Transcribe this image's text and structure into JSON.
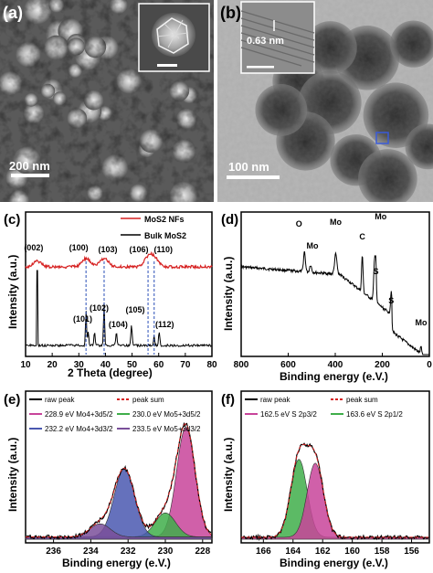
{
  "panels": {
    "a": {
      "label": "(a)",
      "scalebar": "200 nm"
    },
    "b": {
      "label": "(b)",
      "scalebar": "100 nm",
      "inset_label": "0.63 nm"
    },
    "c": {
      "label": "(c)"
    },
    "d": {
      "label": "(d)"
    },
    "e": {
      "label": "(e)"
    },
    "f": {
      "label": "(f)"
    }
  },
  "colors": {
    "red": "#d62020",
    "black": "#000000",
    "purple_fill": "#7a4f9a",
    "blue_fill": "#4a58b0",
    "green_fill": "#3fae4a",
    "pink_fill": "#c8449a",
    "gray_fill": "#707070"
  },
  "chart_data": [
    {
      "panel": "c",
      "type": "line",
      "xlabel": "2 Theta (degree)",
      "ylabel": "Intensity (a.u.)",
      "xlim": [
        10,
        80
      ],
      "xticks": [
        "10",
        "20",
        "30",
        "40",
        "50",
        "60",
        "70",
        "80"
      ],
      "legend": [
        "MoS2 NFs",
        "Bulk MoS2"
      ],
      "legend_placement": "top-right",
      "peaks_nfs": [
        {
          "label": "(002)",
          "x": 14.4
        },
        {
          "label": "(100)",
          "x": 32.7
        },
        {
          "label": "(103)",
          "x": 39.5
        },
        {
          "label": "(106)",
          "x": 56.0
        },
        {
          "label": "(110)",
          "x": 58.3
        }
      ],
      "peaks_bulk": [
        {
          "label": "(101)",
          "x": 33.5
        },
        {
          "label": "(102)",
          "x": 35.9
        },
        {
          "label": "(104)",
          "x": 44.1
        },
        {
          "label": "(105)",
          "x": 49.8
        },
        {
          "label": "(112)",
          "x": 60.2
        }
      ]
    },
    {
      "panel": "d",
      "type": "line",
      "xlabel": "Binding energy (e.V.)",
      "ylabel": "Intensity (a.u.)",
      "xlim": [
        800,
        0
      ],
      "xticks": [
        "800",
        "600",
        "400",
        "200",
        "0"
      ],
      "peaks": [
        {
          "label": "O",
          "x": 531
        },
        {
          "label": "Mo",
          "x": 505
        },
        {
          "label": "Mo",
          "x": 398
        },
        {
          "label": "C",
          "x": 285
        },
        {
          "label": "Mo",
          "x": 230
        },
        {
          "label": "S",
          "x": 227
        },
        {
          "label": "S",
          "x": 162
        },
        {
          "label": "Mo",
          "x": 35
        }
      ]
    },
    {
      "panel": "e",
      "type": "line",
      "xlabel": "Binding energy (e.V.)",
      "ylabel": "Intensity (a.u.)",
      "xlim": [
        237.5,
        227.5
      ],
      "xticks": [
        "236",
        "234",
        "232",
        "230",
        "228"
      ],
      "legend": [
        "raw peak",
        "peak sum",
        "228.9 eV Mo4+3d5/2",
        "230.0 eV Mo5+3d5/2",
        "232.2 eV Mo4+3d3/2",
        "233.5 eV Mo5+3d3/2"
      ],
      "components": [
        {
          "name": "228.9 eV Mo4+3d5/2",
          "center": 228.9,
          "height": 1.0,
          "width": 0.9
        },
        {
          "name": "230.0 eV Mo5+3d5/2",
          "center": 230.0,
          "height": 0.22,
          "width": 1.0
        },
        {
          "name": "232.2 eV Mo4+3d3/2",
          "center": 232.2,
          "height": 0.62,
          "width": 1.0
        },
        {
          "name": "233.5 eV Mo5+3d3/2",
          "center": 233.5,
          "height": 0.12,
          "width": 1.0
        }
      ]
    },
    {
      "panel": "f",
      "type": "line",
      "xlabel": "Binding energy (e.V.)",
      "ylabel": "Intensity (a.u.)",
      "xlim": [
        167.5,
        154.8
      ],
      "xticks": [
        "166",
        "164",
        "162",
        "160",
        "158",
        "156"
      ],
      "legend": [
        "raw peak",
        "peak sum",
        "162.5 eV S 2p3/2",
        "163.6 eV S 2p1/2"
      ],
      "components": [
        {
          "name": "163.6 eV S 2p1/2",
          "center": 163.6,
          "height": 0.82,
          "width": 1.0
        },
        {
          "name": "162.5 eV S 2p3/2",
          "center": 162.5,
          "height": 0.78,
          "width": 1.0
        }
      ]
    }
  ]
}
